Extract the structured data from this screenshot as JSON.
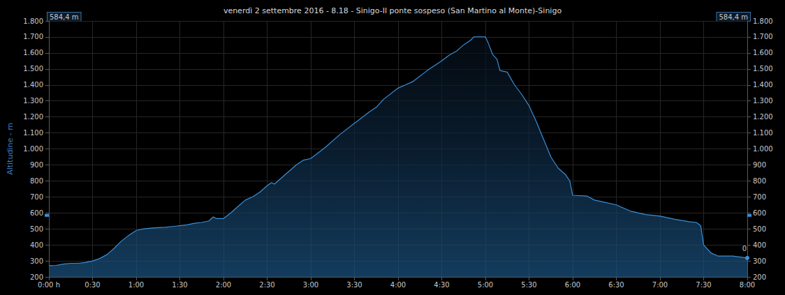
{
  "chart_data": {
    "type": "area",
    "title": "venerdì 2 settembre 2016 - 8.18 - Sinigo-Il ponte sospeso (San Martino al Monte)-Sinigo",
    "y_label": "Altitudine - m",
    "color": "#3a8fd8",
    "grid": true,
    "x": [
      0,
      5,
      10,
      15,
      20,
      25,
      30,
      35,
      40,
      45,
      50,
      55,
      60,
      65,
      70,
      75,
      80,
      85,
      90,
      95,
      100,
      105,
      110,
      113,
      115,
      120,
      125,
      130,
      135,
      140,
      145,
      150,
      153,
      155,
      160,
      170,
      175,
      180,
      190,
      200,
      210,
      220,
      225,
      230,
      240,
      245,
      250,
      260,
      270,
      275,
      280,
      285,
      290,
      292,
      300,
      302,
      305,
      308,
      310,
      315,
      320,
      325,
      330,
      335,
      340,
      345,
      350,
      355,
      358,
      360,
      370,
      375,
      380,
      390,
      400,
      410,
      420,
      430,
      440,
      445,
      448,
      450,
      455,
      460,
      470,
      480
    ],
    "values": [
      270,
      272,
      280,
      285,
      285,
      290,
      300,
      315,
      340,
      380,
      425,
      460,
      490,
      500,
      505,
      508,
      510,
      515,
      520,
      525,
      535,
      540,
      550,
      575,
      565,
      565,
      600,
      640,
      680,
      700,
      730,
      770,
      790,
      780,
      820,
      900,
      930,
      940,
      1010,
      1090,
      1160,
      1230,
      1260,
      1310,
      1380,
      1400,
      1420,
      1490,
      1550,
      1585,
      1610,
      1650,
      1680,
      1700,
      1700,
      1660,
      1590,
      1560,
      1490,
      1480,
      1400,
      1340,
      1270,
      1170,
      1060,
      950,
      880,
      840,
      800,
      710,
      705,
      680,
      670,
      650,
      610,
      590,
      580,
      560,
      545,
      540,
      520,
      400,
      350,
      330,
      330,
      318
    ],
    "xlim": [
      0,
      480
    ],
    "xticks": [
      {
        "value": 0,
        "label": "0:00 h"
      },
      {
        "value": 30,
        "label": "0:30"
      },
      {
        "value": 60,
        "label": "1:00"
      },
      {
        "value": 90,
        "label": "1:30"
      },
      {
        "value": 120,
        "label": "2:00"
      },
      {
        "value": 150,
        "label": "2:30"
      },
      {
        "value": 180,
        "label": "3:00"
      },
      {
        "value": 210,
        "label": "3:30"
      },
      {
        "value": 240,
        "label": "4:00"
      },
      {
        "value": 270,
        "label": "4:30"
      },
      {
        "value": 300,
        "label": "5:00"
      },
      {
        "value": 330,
        "label": "5:30"
      },
      {
        "value": 360,
        "label": "6:00"
      },
      {
        "value": 390,
        "label": "6:30"
      },
      {
        "value": 420,
        "label": "7:00"
      },
      {
        "value": 450,
        "label": "7:30"
      },
      {
        "value": 480,
        "label": "8:00"
      }
    ],
    "ylim": [
      200,
      1800
    ],
    "yticks": [
      200,
      300,
      400,
      500,
      600,
      700,
      800,
      900,
      {
        "value": 1000,
        "label": "1.000"
      },
      {
        "value": 1100,
        "label": "1.100"
      },
      {
        "value": 1200,
        "label": "1.200"
      },
      {
        "value": 1300,
        "label": "1.300"
      },
      {
        "value": 1400,
        "label": "1.400"
      },
      {
        "value": 1500,
        "label": "1.500"
      },
      {
        "value": 1600,
        "label": "1.600"
      },
      {
        "value": 1700,
        "label": "1.700"
      },
      {
        "value": 1800,
        "label": "1.800"
      }
    ],
    "y2lim": [
      200,
      1800
    ],
    "y2ticks": [
      200,
      300,
      400,
      500,
      600,
      700,
      800,
      900,
      {
        "value": 1000,
        "label": "1.000"
      },
      {
        "value": 1100,
        "label": "1.100"
      },
      {
        "value": 1200,
        "label": "1.200"
      },
      {
        "value": 1300,
        "label": "1.300"
      },
      {
        "value": 1400,
        "label": "1.400"
      },
      {
        "value": 1500,
        "label": "1.500"
      },
      {
        "value": 1600,
        "label": "1.600"
      },
      {
        "value": 1700,
        "label": "1.700"
      },
      {
        "value": 1800,
        "label": "1.800"
      }
    ],
    "annotations": [
      {
        "text": "584,4 m",
        "value": 584.4,
        "axis": "y"
      },
      {
        "text": "584,4 m",
        "value": 584.4,
        "axis": "y2"
      },
      {
        "text": "0",
        "x": 480,
        "y": 318
      }
    ]
  }
}
